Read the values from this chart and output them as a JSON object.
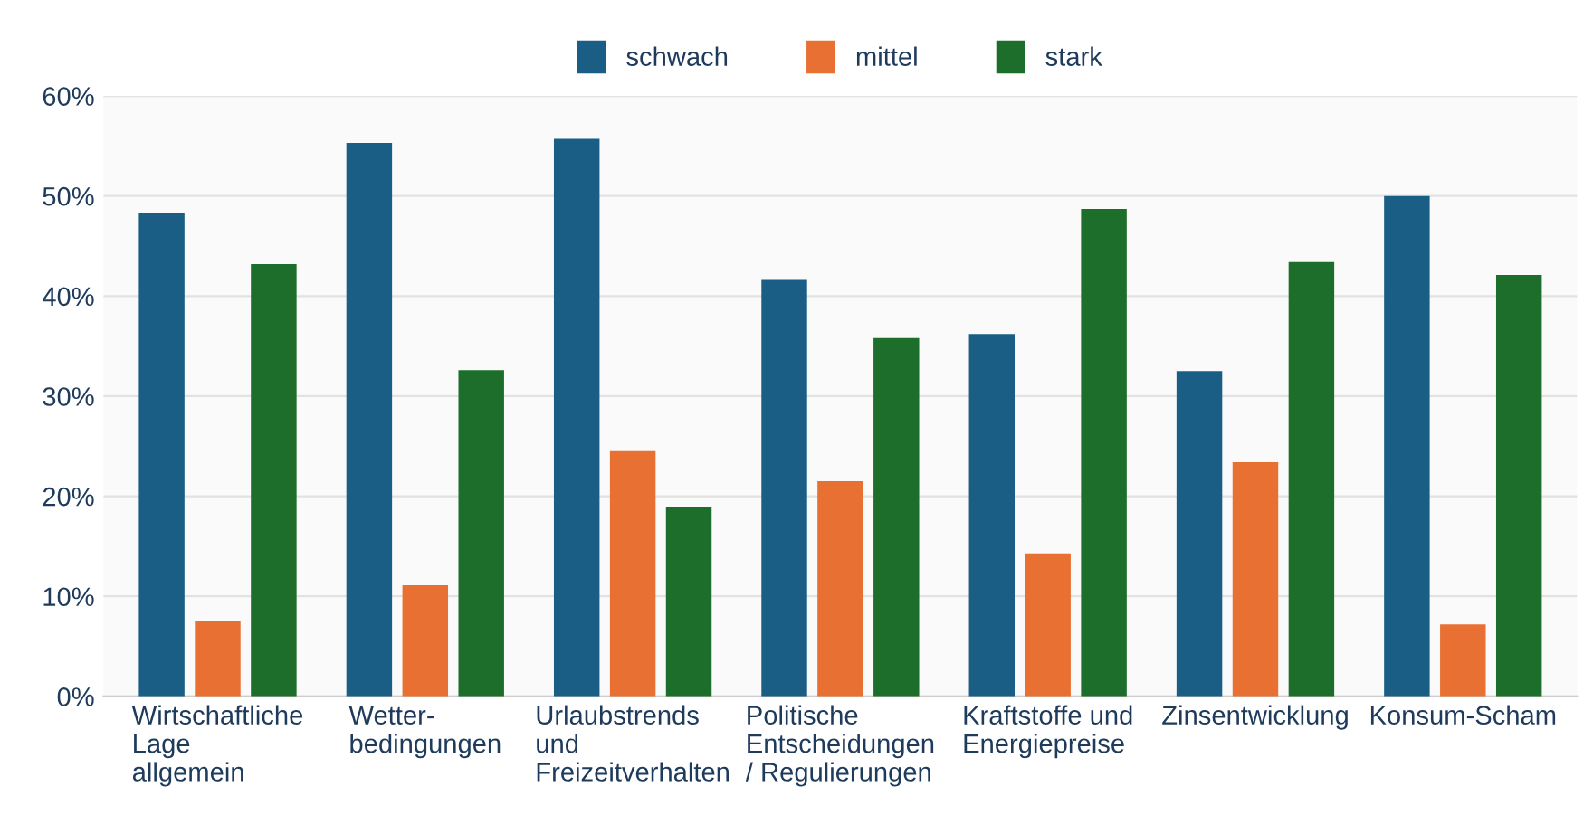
{
  "chart_data": {
    "type": "bar",
    "categories": [
      "Wirtschaftliche\nLage\nallgemein",
      "Wetter-\nbedingungen",
      "Urlaubstrends\nund\nFreizeitverhalten",
      "Politische\nEntscheidungen\n/ Regulierungen",
      "Kraftstoffe und\nEnergiepreise",
      "Zinsentwicklung",
      "Konsum-Scham"
    ],
    "series": [
      {
        "name": "schwach",
        "color": "#1a5e85",
        "values": [
          48.3,
          55.3,
          55.7,
          41.7,
          36.2,
          32.5,
          50.0
        ]
      },
      {
        "name": "mittel",
        "color": "#e87033",
        "values": [
          7.5,
          11.1,
          24.5,
          21.5,
          14.3,
          23.4,
          7.2
        ]
      },
      {
        "name": "stark",
        "color": "#1d6e2a",
        "values": [
          43.2,
          32.6,
          18.9,
          35.8,
          48.7,
          43.4,
          42.1
        ]
      }
    ],
    "ylim": [
      0,
      60
    ],
    "yticks": [
      {
        "value": 0,
        "label": "0%"
      },
      {
        "value": 10,
        "label": "10%"
      },
      {
        "value": 20,
        "label": "20%"
      },
      {
        "value": 30,
        "label": "30%"
      },
      {
        "value": 40,
        "label": "40%"
      },
      {
        "value": 50,
        "label": "50%"
      },
      {
        "value": 60,
        "label": "60%"
      }
    ],
    "grid": "y",
    "legend": "top"
  }
}
